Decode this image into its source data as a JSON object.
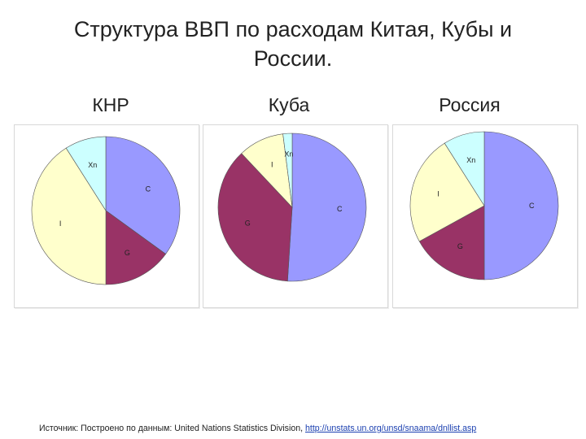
{
  "title": "Структура ВВП по расходам Китая, Кубы и России.",
  "source": {
    "prefix": "Источник: Построено по  данным: United Nations Statistics Division, ",
    "link": "http://unstats.un.org/unsd/snaama/dnllist.asp"
  },
  "colors": {
    "C": "#9999ff",
    "G": "#993366",
    "I": "#ffffcc",
    "Xn": "#ccffff"
  },
  "chart_data": [
    {
      "type": "pie",
      "title": "КНР",
      "slices": [
        {
          "label": "C",
          "value": 35
        },
        {
          "label": "G",
          "value": 15
        },
        {
          "label": "I",
          "value": 41
        },
        {
          "label": "Xn",
          "value": 9
        }
      ]
    },
    {
      "type": "pie",
      "title": "Куба",
      "slices": [
        {
          "label": "C",
          "value": 51
        },
        {
          "label": "G",
          "value": 37
        },
        {
          "label": "I",
          "value": 10
        },
        {
          "label": "Xn",
          "value": 2
        }
      ]
    },
    {
      "type": "pie",
      "title": "Россия",
      "slices": [
        {
          "label": "C",
          "value": 50
        },
        {
          "label": "G",
          "value": 17
        },
        {
          "label": "I",
          "value": 24
        },
        {
          "label": "Xn",
          "value": 9
        }
      ]
    }
  ]
}
